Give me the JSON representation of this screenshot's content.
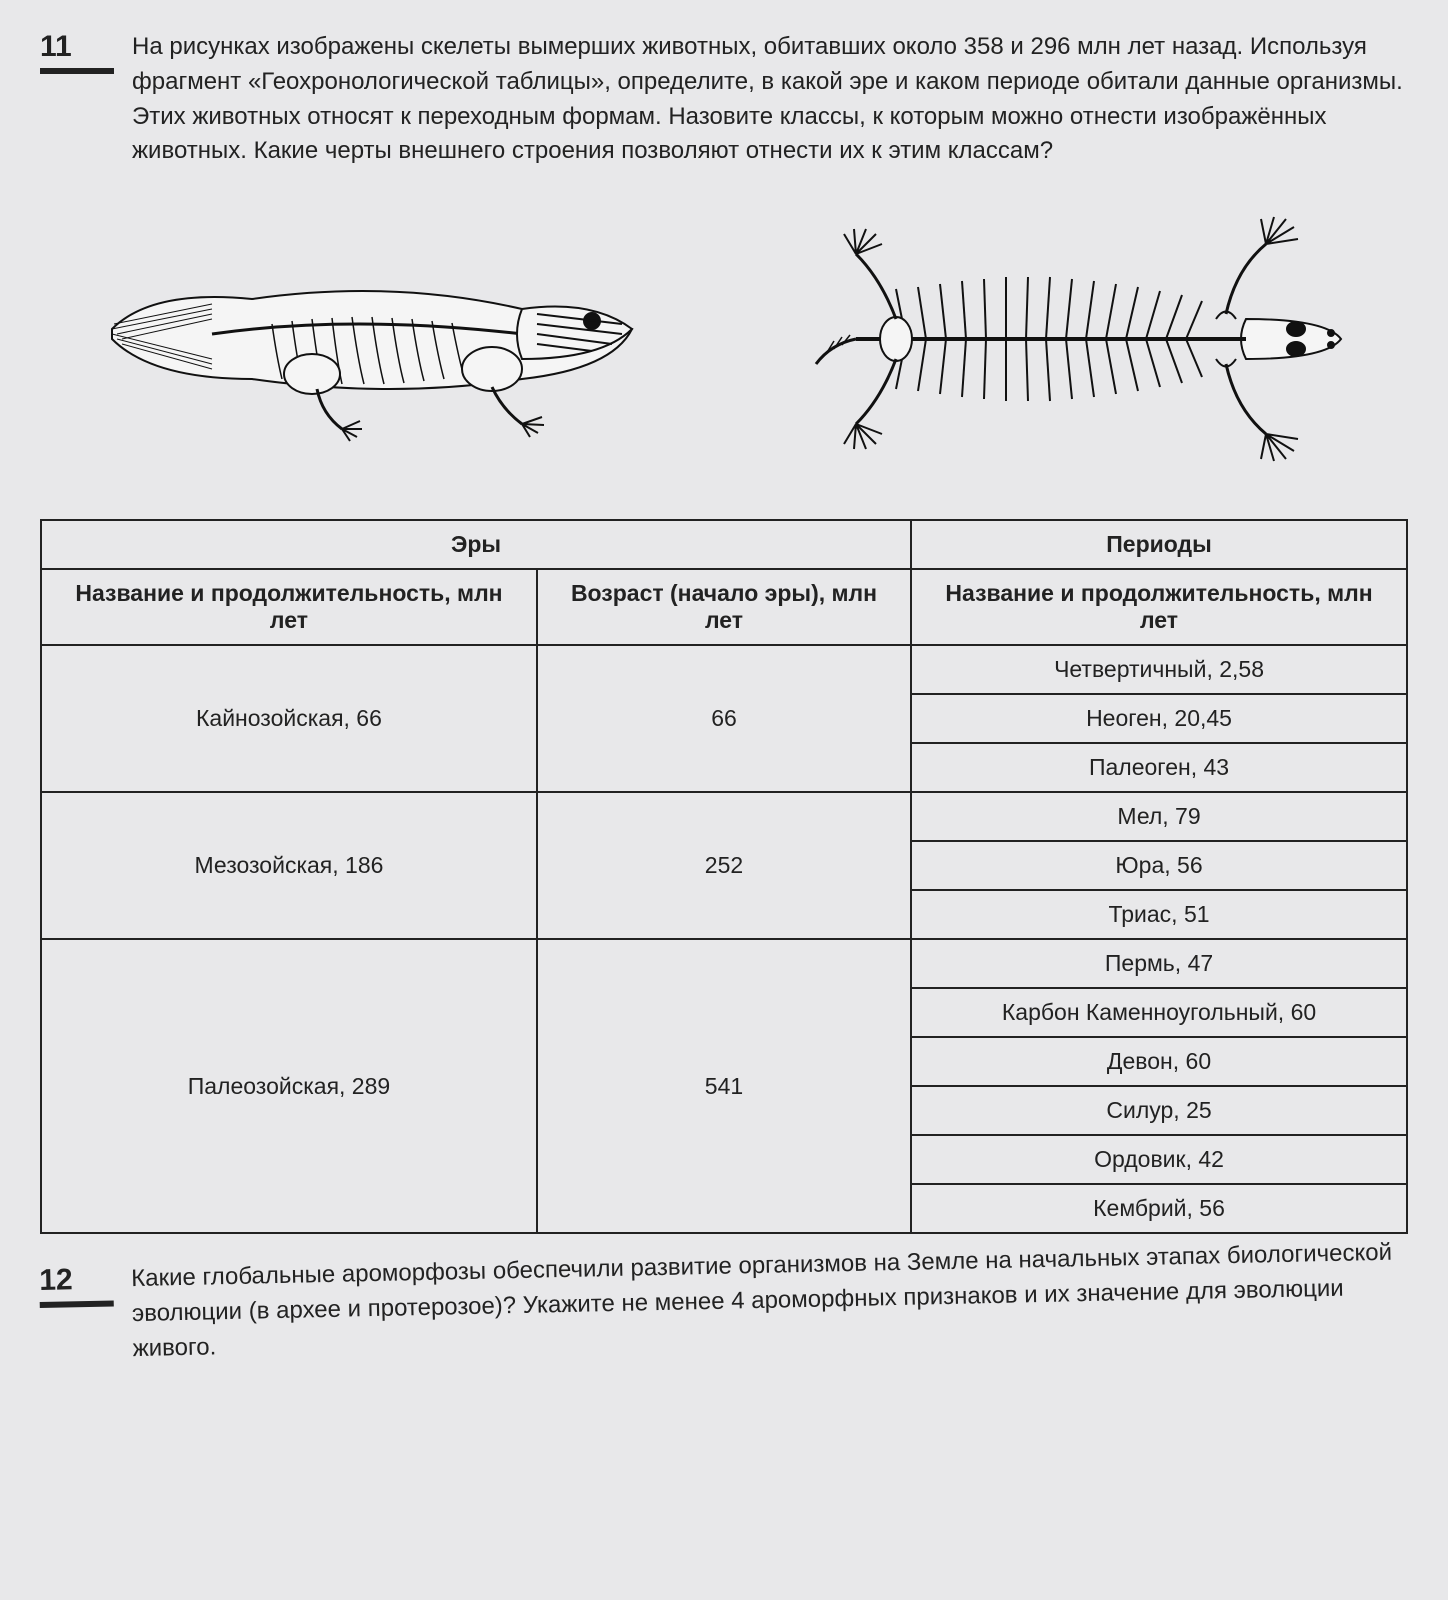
{
  "q11": {
    "number": "11",
    "text": "На рисунках изображены скелеты вымерших животных, обитавших около 358 и 296 млн лет назад. Используя фрагмент «Геохронологической таблицы», определите, в какой эре и каком периоде обитали данные организмы. Этих животных относят к переходным формам. Назовите классы, к которым можно отнести изображённых животных. Какие черты внешнего строения позволяют отнести их к этим классам?"
  },
  "figures": {
    "left_desc": "skeleton-fishlike-tetrapod",
    "right_desc": "skeleton-early-amphibian"
  },
  "table": {
    "header_eras": "Эры",
    "header_periods": "Периоды",
    "col_era_name": "Название и продолжительность, млн лет",
    "col_era_age": "Возраст (начало эры), млн лет",
    "col_period_name": "Название и продолжительность, млн лет",
    "rows": [
      {
        "era_name": "Кайнозойская, 66",
        "era_age": "66",
        "periods": [
          "Четвертичный, 2,58",
          "Неоген, 20,45",
          "Палеоген, 43"
        ]
      },
      {
        "era_name": "Мезозойская, 186",
        "era_age": "252",
        "periods": [
          "Мел, 79",
          "Юра, 56",
          "Триас, 51"
        ]
      },
      {
        "era_name": "Палеозойская, 289",
        "era_age": "541",
        "periods": [
          "Пермь, 47",
          "Карбон Каменноугольный, 60",
          "Девон, 60",
          "Силур, 25",
          "Ордовик, 42",
          "Кембрий, 56"
        ]
      }
    ]
  },
  "q12": {
    "number": "12",
    "text": "Какие глобальные ароморфозы обеспечили развитие организмов на Земле на начальных этапах биологической эволюции (в архее и протерозое)? Укажите не менее 4 ароморфных признаков и их значение для эволюции живого."
  },
  "style": {
    "border_color": "#222",
    "text_color": "#222",
    "bg_color": "#e8e8ea"
  }
}
